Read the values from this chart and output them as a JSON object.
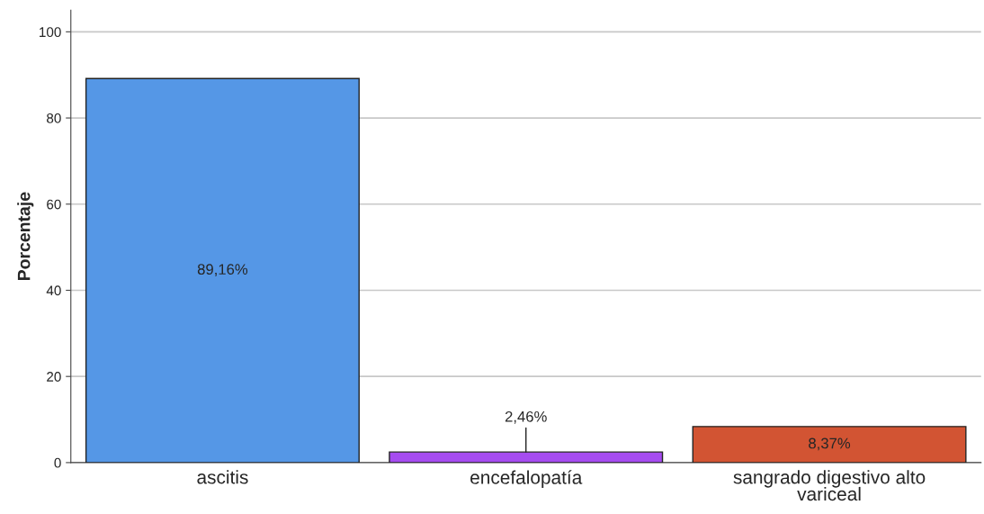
{
  "chart_data": {
    "type": "bar",
    "ylabel": "Porcentaje",
    "categories": [
      "ascitis",
      "encefalopatía",
      "sangrado digestivo alto\nvariceal"
    ],
    "values": [
      89.16,
      2.46,
      8.37
    ],
    "colors": [
      "#5597e6",
      "#a64cf0",
      "#d25433"
    ],
    "value_labels": [
      "89,16%",
      "2,46%",
      "8,37%"
    ],
    "ylim": [
      0,
      105
    ],
    "yticks": [
      0,
      20,
      40,
      60,
      80,
      100
    ],
    "grid": "y",
    "legend": false
  }
}
